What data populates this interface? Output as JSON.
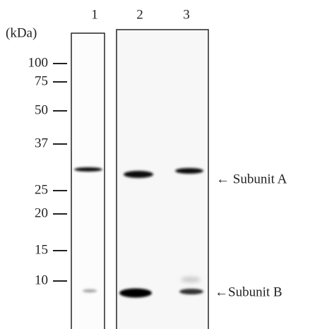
{
  "header": {
    "unit": "(kDa)",
    "lanes": [
      "1",
      "2",
      "3"
    ]
  },
  "markers": [
    100,
    75,
    50,
    37,
    25,
    20,
    15,
    10
  ],
  "bands": [
    "← Subunit A",
    "←Subunit B"
  ]
}
